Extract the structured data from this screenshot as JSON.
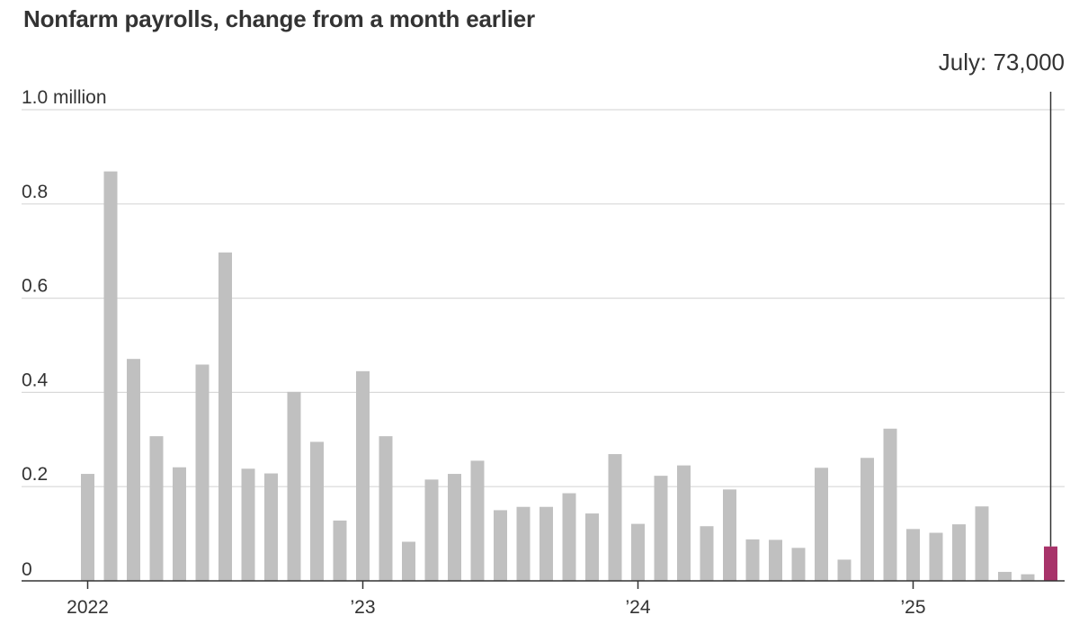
{
  "title": "Nonfarm payrolls, change from a month earlier",
  "callout_label": "July: 73,000",
  "colors": {
    "bar": "#c0c0c0",
    "highlight": "#a8336a",
    "grid": "#d9d9d9",
    "axis": "#333333"
  },
  "chart_data": {
    "type": "bar",
    "title": "Nonfarm payrolls, change from a month earlier",
    "y_unit": "million",
    "ylim": [
      0,
      1.0
    ],
    "y_ticks": [
      {
        "value": 0,
        "label": "0"
      },
      {
        "value": 0.2,
        "label": "0.2"
      },
      {
        "value": 0.4,
        "label": "0.4"
      },
      {
        "value": 0.6,
        "label": "0.6"
      },
      {
        "value": 0.8,
        "label": "0.8"
      },
      {
        "value": 1.0,
        "label": "1.0 million"
      }
    ],
    "x_ticks": [
      {
        "index": 0,
        "label": "2022"
      },
      {
        "index": 12,
        "label": "’23"
      },
      {
        "index": 24,
        "label": "’24"
      },
      {
        "index": 36,
        "label": "’25"
      }
    ],
    "categories": [
      "2022-01",
      "2022-02",
      "2022-03",
      "2022-04",
      "2022-05",
      "2022-06",
      "2022-07",
      "2022-08",
      "2022-09",
      "2022-10",
      "2022-11",
      "2022-12",
      "2023-01",
      "2023-02",
      "2023-03",
      "2023-04",
      "2023-05",
      "2023-06",
      "2023-07",
      "2023-08",
      "2023-09",
      "2023-10",
      "2023-11",
      "2023-12",
      "2024-01",
      "2024-02",
      "2024-03",
      "2024-04",
      "2024-05",
      "2024-06",
      "2024-07",
      "2024-08",
      "2024-09",
      "2024-10",
      "2024-11",
      "2024-12",
      "2025-01",
      "2025-02",
      "2025-03",
      "2025-04",
      "2025-05",
      "2025-06",
      "2025-07"
    ],
    "values": [
      0.227,
      0.869,
      0.471,
      0.307,
      0.241,
      0.459,
      0.697,
      0.238,
      0.228,
      0.401,
      0.295,
      0.128,
      0.445,
      0.307,
      0.083,
      0.215,
      0.227,
      0.255,
      0.15,
      0.157,
      0.157,
      0.186,
      0.143,
      0.269,
      0.121,
      0.223,
      0.245,
      0.116,
      0.194,
      0.088,
      0.087,
      0.07,
      0.24,
      0.045,
      0.261,
      0.323,
      0.11,
      0.102,
      0.12,
      0.158,
      0.019,
      0.014,
      0.073
    ],
    "highlight_index": 42,
    "grid": true
  }
}
